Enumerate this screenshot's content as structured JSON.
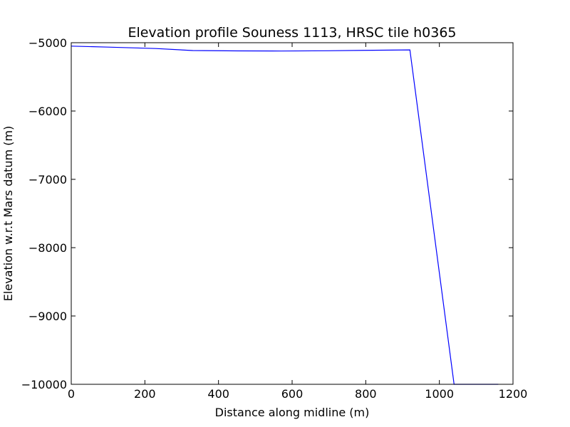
{
  "chart_data": {
    "type": "line",
    "title": "Elevation profile Souness 1113, HRSC tile h0365",
    "xlabel": "Distance along midline (m)",
    "ylabel": "Elevation w.r.t Mars datum (m)",
    "xlim": [
      0,
      1200
    ],
    "ylim": [
      -10000,
      -5000
    ],
    "x_ticks": [
      0,
      200,
      400,
      600,
      800,
      1000,
      1200
    ],
    "y_ticks": [
      -5000,
      -6000,
      -7000,
      -8000,
      -9000,
      -10000
    ],
    "x_tick_labels": [
      "0",
      "200",
      "400",
      "600",
      "800",
      "1000",
      "1200"
    ],
    "y_tick_labels": [
      "−5000",
      "−6000",
      "−7000",
      "−8000",
      "−9000",
      "−10000"
    ],
    "grid": false,
    "series": [
      {
        "color": "#0000ff",
        "x": [
          0,
          100,
          230,
          330,
          450,
          570,
          700,
          820,
          920,
          1040,
          1160
        ],
        "y": [
          -5050,
          -5065,
          -5085,
          -5115,
          -5120,
          -5122,
          -5118,
          -5110,
          -5105,
          -10000,
          -10000
        ]
      }
    ]
  }
}
